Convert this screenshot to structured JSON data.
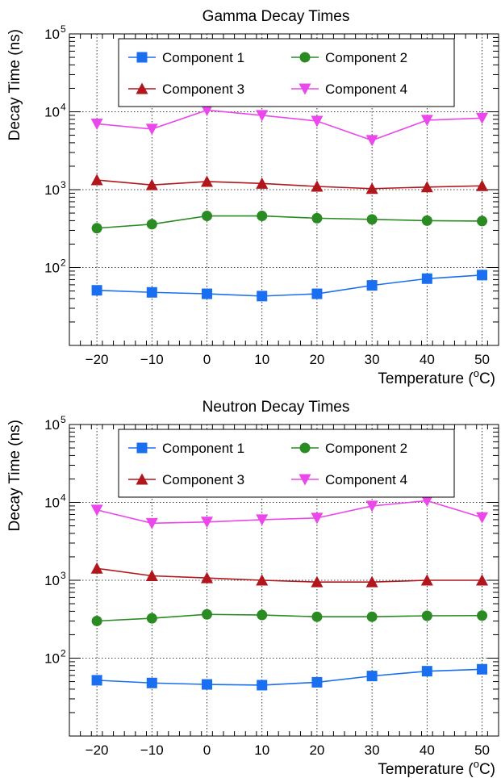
{
  "chart_data": [
    {
      "type": "line",
      "title": "Gamma Decay Times",
      "xlabel": "Temperature",
      "xlabel_unit": "(oC)",
      "ylabel": "Decay Time (ns)",
      "yscale": "log",
      "xlim": [
        -25,
        53
      ],
      "ylim": [
        10,
        100000
      ],
      "x": [
        -20,
        -10,
        0,
        10,
        20,
        30,
        40,
        50
      ],
      "xticks": [
        "−20",
        "−10",
        "0",
        "10",
        "20",
        "30",
        "40",
        "50"
      ],
      "yticks": [
        "10",
        "10",
        "10"
      ],
      "yticks_exp": [
        "2",
        "3",
        "4"
      ],
      "ytop_label": "10",
      "ytop_exp": "5",
      "grid": true,
      "legend": "top",
      "series": [
        {
          "name": "Component 1",
          "color": "#1a6ef0",
          "marker": "square",
          "values": [
            51,
            48,
            46,
            43,
            46,
            59,
            72,
            80
          ]
        },
        {
          "name": "Component 2",
          "color": "#2a8b22",
          "marker": "circle",
          "values": [
            320,
            360,
            460,
            460,
            430,
            415,
            400,
            395
          ]
        },
        {
          "name": "Component 3",
          "color": "#b0161b",
          "marker": "triangle-up",
          "values": [
            1330,
            1150,
            1270,
            1200,
            1100,
            1030,
            1080,
            1120
          ]
        },
        {
          "name": "Component 4",
          "color": "#ea48ea",
          "marker": "triangle-down",
          "values": [
            7000,
            6000,
            10500,
            9000,
            7600,
            4300,
            7800,
            8300
          ]
        }
      ]
    },
    {
      "type": "line",
      "title": "Neutron Decay Times",
      "xlabel": "Temperature",
      "xlabel_unit": "(oC)",
      "ylabel": "Decay Time (ns)",
      "yscale": "log",
      "xlim": [
        -25,
        53
      ],
      "ylim": [
        10,
        100000
      ],
      "x": [
        -20,
        -10,
        0,
        10,
        20,
        30,
        40,
        50
      ],
      "xticks": [
        "−20",
        "−10",
        "0",
        "10",
        "20",
        "30",
        "40",
        "50"
      ],
      "yticks": [
        "10",
        "10",
        "10"
      ],
      "yticks_exp": [
        "2",
        "3",
        "4"
      ],
      "ytop_label": "10",
      "ytop_exp": "5",
      "grid": true,
      "legend": "top",
      "series": [
        {
          "name": "Component 1",
          "color": "#1a6ef0",
          "marker": "square",
          "values": [
            52,
            48,
            46,
            45,
            49,
            59,
            68,
            72
          ]
        },
        {
          "name": "Component 2",
          "color": "#2a8b22",
          "marker": "circle",
          "values": [
            300,
            325,
            365,
            358,
            340,
            340,
            350,
            352
          ]
        },
        {
          "name": "Component 3",
          "color": "#b0161b",
          "marker": "triangle-up",
          "values": [
            1420,
            1140,
            1070,
            1000,
            950,
            950,
            1000,
            1000
          ]
        },
        {
          "name": "Component 4",
          "color": "#ea48ea",
          "marker": "triangle-down",
          "values": [
            8000,
            5400,
            5600,
            6000,
            6300,
            9000,
            10500,
            6400
          ]
        }
      ]
    }
  ]
}
